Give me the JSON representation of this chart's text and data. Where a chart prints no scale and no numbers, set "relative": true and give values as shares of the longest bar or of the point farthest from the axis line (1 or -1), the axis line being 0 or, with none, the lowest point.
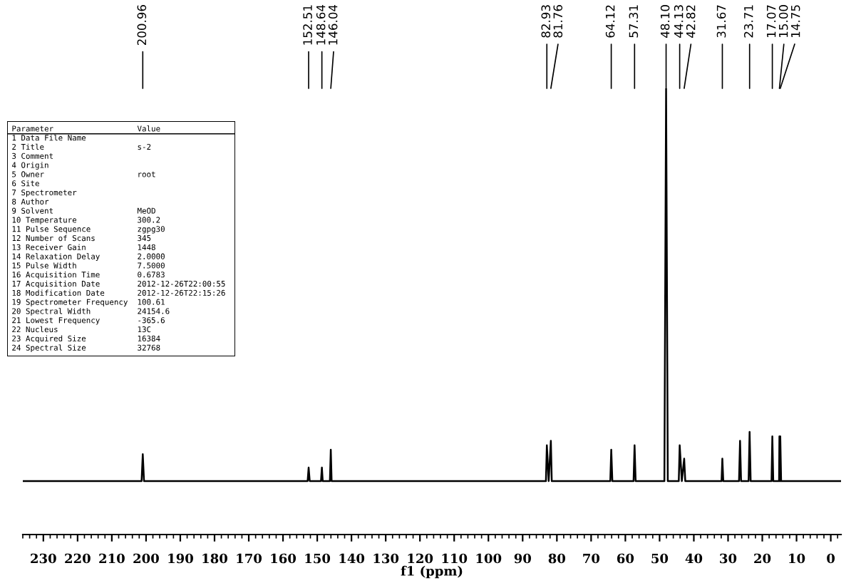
{
  "chart_data": [
    {
      "type": "line",
      "xlabel": "f1 (ppm)",
      "relative": true,
      "xlim": [
        236,
        -3
      ],
      "xticks": [
        230,
        220,
        210,
        200,
        190,
        180,
        170,
        160,
        150,
        140,
        130,
        120,
        110,
        100,
        90,
        80,
        70,
        60,
        50,
        40,
        30,
        20,
        10,
        0
      ],
      "tick_labels": "x",
      "grid": false,
      "legend": false,
      "marker": "none",
      "line_style": "solid",
      "series": [
        {
          "color": "#000000",
          "x": [
            236,
            201.3,
            200.96,
            200.6,
            152.8,
            152.51,
            152.2,
            148.9,
            148.64,
            148.4,
            146.3,
            146.04,
            145.8,
            83.2,
            82.93,
            82.4,
            81.76,
            81.5,
            64.4,
            64.12,
            63.8,
            57.6,
            57.31,
            57.0,
            48.6,
            48.1,
            47.6,
            44.4,
            44.13,
            43.5,
            42.82,
            42.5,
            31.9,
            31.67,
            31.4,
            26.8,
            26.5,
            26.2,
            24.0,
            23.71,
            23.4,
            17.3,
            17.07,
            16.8,
            15.1,
            15.0,
            14.87,
            14.75,
            14.5,
            -3
          ],
          "values": [
            0.12,
            0.12,
            0.18,
            0.12,
            0.12,
            0.15,
            0.12,
            0.12,
            0.15,
            0.12,
            0.12,
            0.19,
            0.12,
            0.12,
            0.2,
            0.12,
            0.21,
            0.12,
            0.12,
            0.19,
            0.12,
            0.12,
            0.2,
            0.12,
            0.12,
            1,
            0.12,
            0.12,
            0.2,
            0.12,
            0.17,
            0.12,
            0.12,
            0.17,
            0.12,
            0.12,
            0.21,
            0.12,
            0.12,
            0.23,
            0.12,
            0.12,
            0.22,
            0.12,
            0.12,
            0.22,
            0.12,
            0.22,
            0.12,
            0.12
          ]
        }
      ],
      "annotations": [
        {
          "text": "200.96",
          "x": 200.96
        },
        {
          "text": "152.51",
          "x": 152.51
        },
        {
          "text": "148.64",
          "x": 148.64
        },
        {
          "text": "146.04",
          "x": 146.04
        },
        {
          "text": "82.93",
          "x": 82.93
        },
        {
          "text": "81.76",
          "x": 81.76
        },
        {
          "text": "64.12",
          "x": 64.12
        },
        {
          "text": "57.31",
          "x": 57.31
        },
        {
          "text": "48.10",
          "x": 48.1
        },
        {
          "text": "44.13",
          "x": 44.13
        },
        {
          "text": "42.82",
          "x": 42.82
        },
        {
          "text": "31.67",
          "x": 31.67
        },
        {
          "text": "23.71",
          "x": 23.71
        },
        {
          "text": "17.07",
          "x": 17.07
        },
        {
          "text": "15.00",
          "x": 15.0
        },
        {
          "text": "14.75",
          "x": 14.75
        }
      ]
    },
    {
      "type": "other",
      "annotations": [
        "Parameter\tValue",
        "1 Data File Name",
        "2 Title\ts-2",
        "3 Comment",
        "4 Origin",
        "5 Owner\troot",
        "6 Site",
        "7 Spectrometer",
        "8 Author",
        "9 Solvent\tMeOD",
        "10 Temperature\t300.2",
        "11 Pulse Sequence\tzgpg30",
        "12 Number of Scans\t345",
        "13 Receiver Gain\t1448",
        "14 Relaxation Delay\t2.0000",
        "15 Pulse Width\t7.5000",
        "16 Acquisition Time\t0.6783",
        "17 Acquisition Date\t2012-12-26T22:00:55",
        "18 Modification Date\t2012-12-26T22:15:26",
        "19 Spectrometer Frequency\t100.61",
        "20 Spectral Width\t24154.6",
        "21 Lowest Frequency\t-365.6",
        "22 Nucleus\t13C",
        "23 Acquired Size\t16384",
        "24 Spectral Size\t32768"
      ]
    }
  ]
}
